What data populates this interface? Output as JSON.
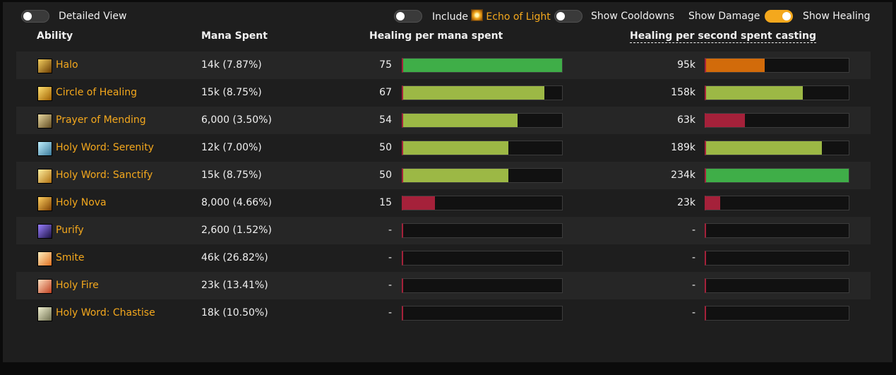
{
  "toolbar": {
    "detailed_view": {
      "label": "Detailed View",
      "on": false
    },
    "include_echo": {
      "prefix": "Include",
      "label": "Echo of Light",
      "on": false
    },
    "show_cooldowns": {
      "label": "Show Cooldowns",
      "on": false
    },
    "show_damage": {
      "label": "Show Damage"
    },
    "show_healing": {
      "label": "Show Healing",
      "on": true
    }
  },
  "columns": {
    "ability": "Ability",
    "mana_spent": "Mana Spent",
    "healing_per_mana": "Healing per mana spent",
    "healing_per_second": "Healing per second spent casting"
  },
  "colors": {
    "green": "#3fae48",
    "light_green": "#9cb845",
    "orange": "#d26b0a",
    "red": "#a5213a",
    "accent": "#f4a81d"
  },
  "rows": [
    {
      "ability": "Halo",
      "icon": "halo-icon",
      "icon_colors": [
        "#f4d060",
        "#6a3a00"
      ],
      "mana": "14k (7.87%)",
      "hpm": "75",
      "hpm_fill": 1.0,
      "hpm_color": "green",
      "hps": "95k",
      "hps_fill": 0.41,
      "hps_color": "orange"
    },
    {
      "ability": "Circle of Healing",
      "icon": "circle-of-healing-icon",
      "icon_colors": [
        "#ffe070",
        "#a06000"
      ],
      "mana": "15k (8.75%)",
      "hpm": "67",
      "hpm_fill": 0.89,
      "hpm_color": "light_green",
      "hps": "158k",
      "hps_fill": 0.68,
      "hps_color": "light_green"
    },
    {
      "ability": "Prayer of Mending",
      "icon": "prayer-of-mending-icon",
      "icon_colors": [
        "#e8d8a0",
        "#604a20"
      ],
      "mana": "6,000 (3.50%)",
      "hpm": "54",
      "hpm_fill": 0.72,
      "hpm_color": "light_green",
      "hps": "63k",
      "hps_fill": 0.27,
      "hps_color": "red"
    },
    {
      "ability": "Holy Word: Serenity",
      "icon": "holy-word-serenity-icon",
      "icon_colors": [
        "#c0f0ff",
        "#3a7a9a"
      ],
      "mana": "12k (7.00%)",
      "hpm": "50",
      "hpm_fill": 0.66,
      "hpm_color": "light_green",
      "hps": "189k",
      "hps_fill": 0.81,
      "hps_color": "light_green"
    },
    {
      "ability": "Holy Word: Sanctify",
      "icon": "holy-word-sanctify-icon",
      "icon_colors": [
        "#fff0a0",
        "#b07010"
      ],
      "mana": "15k (8.75%)",
      "hpm": "50",
      "hpm_fill": 0.66,
      "hpm_color": "light_green",
      "hps": "234k",
      "hps_fill": 1.0,
      "hps_color": "green"
    },
    {
      "ability": "Holy Nova",
      "icon": "holy-nova-icon",
      "icon_colors": [
        "#ffd060",
        "#804000"
      ],
      "mana": "8,000 (4.66%)",
      "hpm": "15",
      "hpm_fill": 0.2,
      "hpm_color": "red",
      "hps": "23k",
      "hps_fill": 0.1,
      "hps_color": "red"
    },
    {
      "ability": "Purify",
      "icon": "purify-icon",
      "icon_colors": [
        "#9a80ff",
        "#1a1040"
      ],
      "mana": "2,600 (1.52%)",
      "hpm": "-",
      "hpm_fill": 0,
      "hpm_color": "red",
      "hps": "-",
      "hps_fill": 0,
      "hps_color": "red"
    },
    {
      "ability": "Smite",
      "icon": "smite-icon",
      "icon_colors": [
        "#fff0c0",
        "#e07020"
      ],
      "mana": "46k (26.82%)",
      "hpm": "-",
      "hpm_fill": 0,
      "hpm_color": "red",
      "hps": "-",
      "hps_fill": 0,
      "hps_color": "red"
    },
    {
      "ability": "Holy Fire",
      "icon": "holy-fire-icon",
      "icon_colors": [
        "#ffe0c0",
        "#c04020"
      ],
      "mana": "23k (13.41%)",
      "hpm": "-",
      "hpm_fill": 0,
      "hpm_color": "red",
      "hps": "-",
      "hps_fill": 0,
      "hps_color": "red"
    },
    {
      "ability": "Holy Word: Chastise",
      "icon": "holy-word-chastise-icon",
      "icon_colors": [
        "#f0f0d0",
        "#707050"
      ],
      "mana": "18k (10.50%)",
      "hpm": "-",
      "hpm_fill": 0,
      "hpm_color": "red",
      "hps": "-",
      "hps_fill": 0,
      "hps_color": "red"
    }
  ]
}
